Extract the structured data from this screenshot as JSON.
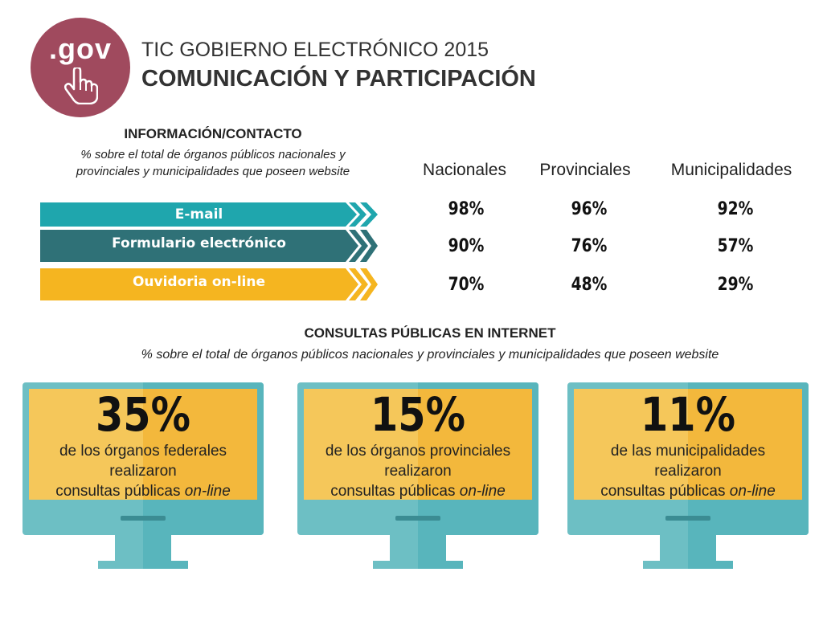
{
  "header": {
    "logo_text": ".gov",
    "title_line1": "TIC GOBIERNO ELECTRÓNICO 2015",
    "title_line2": "COMUNICACIÓN Y PARTICIPACIÓN"
  },
  "info": {
    "title": "INFORMACIÓN/CONTACTO",
    "subtitle_line1": "% sobre el total de órganos públicos nacionales y",
    "subtitle_line2": "provinciales y municipalidades que poseen website",
    "columns": [
      "Nacionales",
      "Provinciales",
      "Municipalidades"
    ],
    "rows": [
      {
        "label": "E-mail",
        "color": "#1fa6ad",
        "values": [
          "98%",
          "96%",
          "92%"
        ]
      },
      {
        "label": "Formulario electrónico",
        "color": "#2f7177",
        "values": [
          "90%",
          "76%",
          "57%"
        ]
      },
      {
        "label": "Ouvidoria on-line",
        "color": "#f5b520",
        "values": [
          "70%",
          "48%",
          "29%"
        ]
      }
    ]
  },
  "consultas": {
    "title": "CONSULTAS PÚBLICAS EN INTERNET",
    "subtitle": "% sobre el total de órganos públicos nacionales y provinciales y municipalidades que poseen website",
    "monitors": [
      {
        "big": "35%",
        "line1": "de los órganos federales",
        "line2": "realizaron",
        "line3a": "consultas públicas ",
        "line3b": "on-line"
      },
      {
        "big": "15%",
        "line1": "de los órganos provinciales",
        "line2": "realizaron",
        "line3a": "consultas públicas ",
        "line3b": "on-line"
      },
      {
        "big": "11%",
        "line1": "de las municipalidades",
        "line2": "realizaron",
        "line3a": "consultas públicas ",
        "line3b": "on-line"
      }
    ]
  },
  "colors": {
    "logo": "#a04a5e",
    "teal": "#1fa6ad",
    "dark_teal": "#2f7177",
    "yellow": "#f5b520"
  }
}
